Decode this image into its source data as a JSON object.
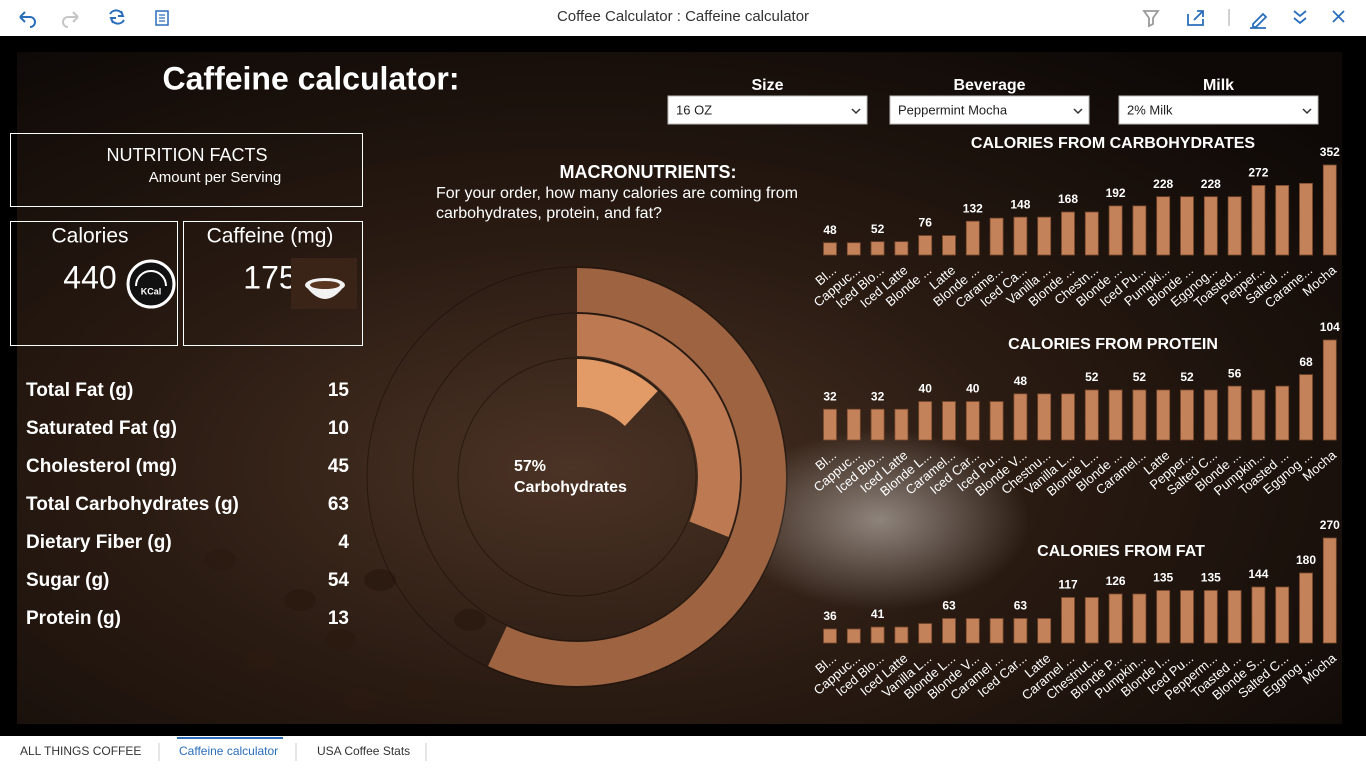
{
  "app": {
    "title": "Coffee Calculator : Caffeine calculator"
  },
  "page": {
    "title": "Caffeine calculator:"
  },
  "filters": [
    {
      "label": "Size",
      "value": "16 OZ"
    },
    {
      "label": "Beverage",
      "value": "Peppermint Mocha"
    },
    {
      "label": "Milk",
      "value": "2% Milk"
    }
  ],
  "nutrition": {
    "title": "NUTRITION FACTS",
    "subtitle": "Amount per Serving",
    "calories": {
      "label": "Calories",
      "value": 440,
      "icon_text": "KCal"
    },
    "caffeine": {
      "label": "Caffeine (mg)",
      "value": 175
    },
    "rows": [
      {
        "label": "Total Fat (g)",
        "value": 15
      },
      {
        "label": "Saturated Fat (g)",
        "value": 10
      },
      {
        "label": "Cholesterol (mg)",
        "value": 45
      },
      {
        "label": "Total Carbohydrates (g)",
        "value": 63
      },
      {
        "label": "Dietary Fiber (g)",
        "value": 4
      },
      {
        "label": "Sugar (g)",
        "value": 54
      },
      {
        "label": "Protein (g)",
        "value": 13
      }
    ]
  },
  "chart_data": [
    {
      "type": "radial",
      "title": "MACRONUTRIENTS:",
      "subtitle": "For your order, how many calories are coming from carbohydrates, protein, and fat?",
      "categories": [
        "Carbohydrates",
        null,
        null
      ],
      "values": [
        57,
        31,
        12
      ],
      "value_labels": [
        "57%",
        null,
        null
      ],
      "colors": [
        "#9e6442",
        "#bd7a52",
        "#e29a66"
      ]
    },
    {
      "type": "bar",
      "title": "CALORIES FROM CARBOHYDRATES",
      "color": "#c4825a",
      "categories": [
        "Bl...",
        "Cappuc...",
        "Iced Blo...",
        "Iced Latte",
        "Blonde ...",
        "Latte",
        "Blonde ...",
        "Carame...",
        "Iced Ca...",
        "Vanilla ...",
        "Blonde ...",
        "Chestn...",
        "Blonde ...",
        "Iced Pu...",
        "Pumpki...",
        "Blonde ...",
        "Eggnog...",
        "Toasted...",
        "Pepper...",
        "Salted ...",
        "Carame...",
        "Mocha"
      ],
      "values": [
        48,
        48,
        52,
        52,
        76,
        76,
        132,
        144,
        148,
        148,
        168,
        168,
        192,
        192,
        228,
        228,
        228,
        228,
        272,
        272,
        280,
        352
      ],
      "value_labels": [
        "48",
        null,
        "52",
        null,
        "76",
        null,
        "132",
        null,
        "148",
        null,
        "168",
        null,
        "192",
        null,
        "228",
        null,
        "228",
        null,
        "272",
        null,
        null,
        "352"
      ]
    },
    {
      "type": "bar",
      "title": "CALORIES FROM PROTEIN",
      "color": "#c4825a",
      "categories": [
        "Bl...",
        "Cappuc...",
        "Iced Blo...",
        "Iced Latte",
        "Blonde L...",
        "Caramel...",
        "Iced Car...",
        "Iced Pu...",
        "Blonde V...",
        "Chestnu...",
        "Vanilla L...",
        "Blonde L...",
        "Blonde ...",
        "Caramel...",
        "Latte",
        "Pepper...",
        "Salted C...",
        "Blonde ...",
        "Pumpkin...",
        "Toasted ...",
        "Eggnog ...",
        "Mocha"
      ],
      "values": [
        32,
        32,
        32,
        32,
        40,
        40,
        40,
        40,
        48,
        48,
        48,
        52,
        52,
        52,
        52,
        52,
        52,
        56,
        52,
        56,
        68,
        104
      ],
      "value_labels": [
        "32",
        null,
        "32",
        null,
        "40",
        null,
        "40",
        null,
        "48",
        null,
        null,
        "52",
        null,
        "52",
        null,
        "52",
        null,
        "56",
        null,
        null,
        "68",
        "104"
      ]
    },
    {
      "type": "bar",
      "title": "CALORIES FROM FAT",
      "color": "#c4825a",
      "categories": [
        "Bl...",
        "Cappuc...",
        "Iced Blo...",
        "Iced Latte",
        "Vanilla L...",
        "Blonde L...",
        "Blonde V...",
        "Caramel ...",
        "Iced Car...",
        "Latte",
        "Caramel ...",
        "Chestnut...",
        "Blonde P...",
        "Pumpkin...",
        "Blonde I...",
        "Iced Pu...",
        "Pepperm...",
        "Toasted ...",
        "Blonde S...",
        "Salted C...",
        "Eggnog ...",
        "Mocha"
      ],
      "values": [
        36,
        36,
        41,
        41,
        50,
        63,
        63,
        63,
        63,
        63,
        117,
        117,
        126,
        126,
        135,
        135,
        135,
        135,
        144,
        144,
        180,
        270
      ],
      "value_labels": [
        "36",
        null,
        "41",
        null,
        null,
        "63",
        null,
        null,
        "63",
        null,
        "117",
        null,
        "126",
        null,
        "135",
        null,
        "135",
        null,
        "144",
        null,
        "180",
        "270"
      ]
    }
  ],
  "tabs": [
    "ALL THINGS COFFEE",
    "Caffeine calculator",
    "USA Coffee Stats"
  ]
}
